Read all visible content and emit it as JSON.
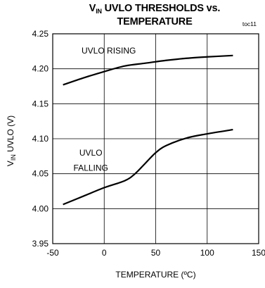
{
  "title": {
    "prefix": "V",
    "subscript": "IN",
    "suffix": " UVLO THRESHOLDS vs.",
    "line2": "TEMPERATURE"
  },
  "figure_code": "toc11",
  "chart_data": {
    "type": "line",
    "xlabel": "TEMPERATURE (ºC)",
    "ylabel_prefix": "V",
    "ylabel_subscript": "IN",
    "ylabel_suffix": " UVLO (V)",
    "xlim": [
      -50,
      150
    ],
    "ylim": [
      3.95,
      4.25
    ],
    "xticks": [
      "-50",
      "0",
      "50",
      "100",
      "150"
    ],
    "yticks": [
      "3.95",
      "4.00",
      "4.05",
      "4.10",
      "4.15",
      "4.20",
      "4.25"
    ],
    "grid": true,
    "series": [
      {
        "label": "UVLO RISING",
        "x": [
          -40,
          -20,
          0,
          20,
          40,
          60,
          80,
          100,
          125
        ],
        "y": [
          4.177,
          4.187,
          4.196,
          4.204,
          4.208,
          4.212,
          4.215,
          4.217,
          4.219
        ]
      },
      {
        "label_line1": "UVLO",
        "label_line2": "FALLING",
        "x": [
          -40,
          -20,
          0,
          20,
          30,
          40,
          50,
          60,
          80,
          100,
          125
        ],
        "y": [
          4.006,
          4.018,
          4.03,
          4.04,
          4.05,
          4.065,
          4.08,
          4.09,
          4.101,
          4.107,
          4.113
        ]
      }
    ]
  }
}
